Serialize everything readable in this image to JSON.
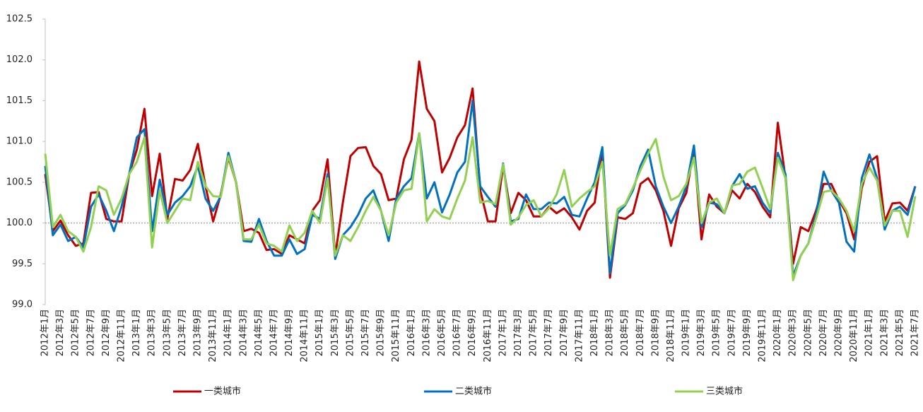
{
  "chart_data": {
    "type": "line",
    "categories": [
      "2012年1月",
      null,
      "2012年3月",
      null,
      "2012年5月",
      null,
      "2012年7月",
      null,
      "2012年9月",
      null,
      "2012年11月",
      null,
      "2013年1月",
      null,
      "2013年3月",
      null,
      "2013年5月",
      null,
      "2013年7月",
      null,
      "2013年9月",
      null,
      "2013年11月",
      null,
      "2014年1月",
      null,
      "2014年3月",
      null,
      "2014年5月",
      null,
      "2014年7月",
      null,
      "2014年9月",
      null,
      "2014年11月",
      null,
      "2015年1月",
      null,
      "2015年3月",
      null,
      "2015年5月",
      null,
      "2015年7月",
      null,
      "2015年9月",
      null,
      "2015年11月",
      null,
      "2016年1月",
      null,
      "2016年3月",
      null,
      "2016年5月",
      null,
      "2016年7月",
      null,
      "2016年9月",
      null,
      "2016年11月",
      null,
      "2017年1月",
      null,
      "2017年3月",
      null,
      "2017年5月",
      null,
      "2017年7月",
      null,
      "2017年9月",
      null,
      "2017年11月",
      null,
      "2018年1月",
      null,
      "2018年3月",
      null,
      "2018年5月",
      null,
      "2018年7月",
      null,
      "2018年9月",
      null,
      "2018年11月",
      null,
      "2019年1月",
      null,
      "2019年3月",
      null,
      "2019年5月",
      null,
      "2019年7月",
      null,
      "2019年9月",
      null,
      "2019年11月",
      null,
      "2020年1月",
      null,
      "2020年3月",
      null,
      "2020年5月",
      null,
      "2020年7月",
      null,
      "2020年9月",
      null,
      "2020年11月",
      null,
      "2021年1月",
      null,
      "2021年3月",
      null,
      "2021年5月",
      null,
      "2021年7月"
    ],
    "series": [
      {
        "name": "一类城市",
        "color": "#c00000",
        "values": [
          100.6,
          99.9,
          100.03,
          99.85,
          99.72,
          99.75,
          100.37,
          100.38,
          100.05,
          100.02,
          100.02,
          100.6,
          100.9,
          101.4,
          100.33,
          100.85,
          100.05,
          100.54,
          100.52,
          100.65,
          100.97,
          100.45,
          100.02,
          100.35,
          100.8,
          100.5,
          99.9,
          99.93,
          99.88,
          99.67,
          99.68,
          99.62,
          99.85,
          99.8,
          99.75,
          100.15,
          100.28,
          100.78,
          99.6,
          100.25,
          100.82,
          100.92,
          100.93,
          100.7,
          100.6,
          100.28,
          100.3,
          100.78,
          101.02,
          101.98,
          101.4,
          101.25,
          100.62,
          100.8,
          101.05,
          101.2,
          101.65,
          100.4,
          100.02,
          100.02,
          100.7,
          100.12,
          100.37,
          100.28,
          100.08,
          100.08,
          100.2,
          100.12,
          100.18,
          100.07,
          99.92,
          100.15,
          100.25,
          100.9,
          99.33,
          100.07,
          100.05,
          100.12,
          100.48,
          100.55,
          100.4,
          100.15,
          99.72,
          100.18,
          100.37,
          100.9,
          99.8,
          100.35,
          100.2,
          100.12,
          100.4,
          100.3,
          100.48,
          100.38,
          100.2,
          100.07,
          101.23,
          100.55,
          99.5,
          99.95,
          99.9,
          100.15,
          100.48,
          100.48,
          100.28,
          100.12,
          99.8,
          100.43,
          100.75,
          100.82,
          100.02,
          100.24,
          100.25,
          100.15,
          100.45
        ]
      },
      {
        "name": "二类城市",
        "color": "#0070c0",
        "values": [
          100.7,
          99.85,
          99.98,
          99.78,
          99.83,
          99.7,
          100.2,
          100.35,
          100.15,
          99.9,
          100.2,
          100.6,
          101.05,
          101.15,
          99.9,
          100.53,
          100.1,
          100.25,
          100.33,
          100.45,
          100.7,
          100.3,
          100.15,
          100.33,
          100.86,
          100.5,
          99.78,
          99.77,
          100.05,
          99.78,
          99.6,
          99.6,
          99.8,
          99.62,
          99.68,
          100.1,
          100.05,
          100.6,
          99.56,
          99.85,
          99.95,
          100.1,
          100.3,
          100.4,
          100.15,
          99.78,
          100.3,
          100.45,
          100.55,
          101.1,
          100.3,
          100.5,
          100.13,
          100.35,
          100.62,
          100.75,
          101.5,
          100.45,
          100.32,
          100.2,
          100.73,
          100.02,
          100.05,
          100.35,
          100.17,
          100.17,
          100.25,
          100.24,
          100.32,
          100.1,
          100.08,
          100.3,
          100.5,
          100.93,
          99.38,
          100.12,
          100.22,
          100.4,
          100.7,
          100.9,
          100.45,
          100.2,
          100.0,
          100.2,
          100.45,
          100.95,
          99.95,
          100.25,
          100.23,
          100.12,
          100.45,
          100.6,
          100.42,
          100.45,
          100.25,
          100.12,
          100.86,
          100.6,
          99.35,
          99.6,
          99.75,
          100.1,
          100.63,
          100.4,
          100.25,
          99.77,
          99.65,
          100.55,
          100.84,
          100.55,
          99.92,
          100.15,
          100.2,
          100.1,
          100.45
        ]
      },
      {
        "name": "三类城市",
        "color": "#92d050",
        "values": [
          100.85,
          99.95,
          100.1,
          99.9,
          99.83,
          99.65,
          99.95,
          100.45,
          100.4,
          100.1,
          100.3,
          100.6,
          100.75,
          101.05,
          99.7,
          100.4,
          100.0,
          100.15,
          100.3,
          100.28,
          100.75,
          100.45,
          100.33,
          100.32,
          100.82,
          100.5,
          99.8,
          99.8,
          99.98,
          99.75,
          99.72,
          99.65,
          99.97,
          99.78,
          99.88,
          100.15,
          100.0,
          100.55,
          99.6,
          99.85,
          99.78,
          99.95,
          100.15,
          100.32,
          100.15,
          99.85,
          100.25,
          100.4,
          100.42,
          101.1,
          100.02,
          100.17,
          100.08,
          100.05,
          100.3,
          100.52,
          101.05,
          100.25,
          100.27,
          100.23,
          100.72,
          99.98,
          100.07,
          100.22,
          100.28,
          100.08,
          100.18,
          100.35,
          100.65,
          100.2,
          100.3,
          100.38,
          100.45,
          100.75,
          99.6,
          100.17,
          100.23,
          100.43,
          100.65,
          100.85,
          101.03,
          100.57,
          100.28,
          100.33,
          100.48,
          100.8,
          100.0,
          100.25,
          100.3,
          100.12,
          100.46,
          100.48,
          100.63,
          100.68,
          100.43,
          100.17,
          100.8,
          100.55,
          99.3,
          99.6,
          99.75,
          100.05,
          100.38,
          100.4,
          100.3,
          100.15,
          99.9,
          100.48,
          100.68,
          100.52,
          99.97,
          100.15,
          100.15,
          99.83,
          100.33
        ]
      }
    ],
    "ylim": [
      99,
      102.5
    ],
    "yticks": [
      {
        "value": 99,
        "label": "99.0"
      },
      99.5,
      {
        "value": 100,
        "label": "100.0"
      },
      100.5,
      {
        "value": 101,
        "label": "101.0"
      },
      101.5,
      {
        "value": 102,
        "label": "102.0"
      },
      102.5
    ],
    "reference_line": 100,
    "grid": false,
    "legend": "bottom"
  }
}
